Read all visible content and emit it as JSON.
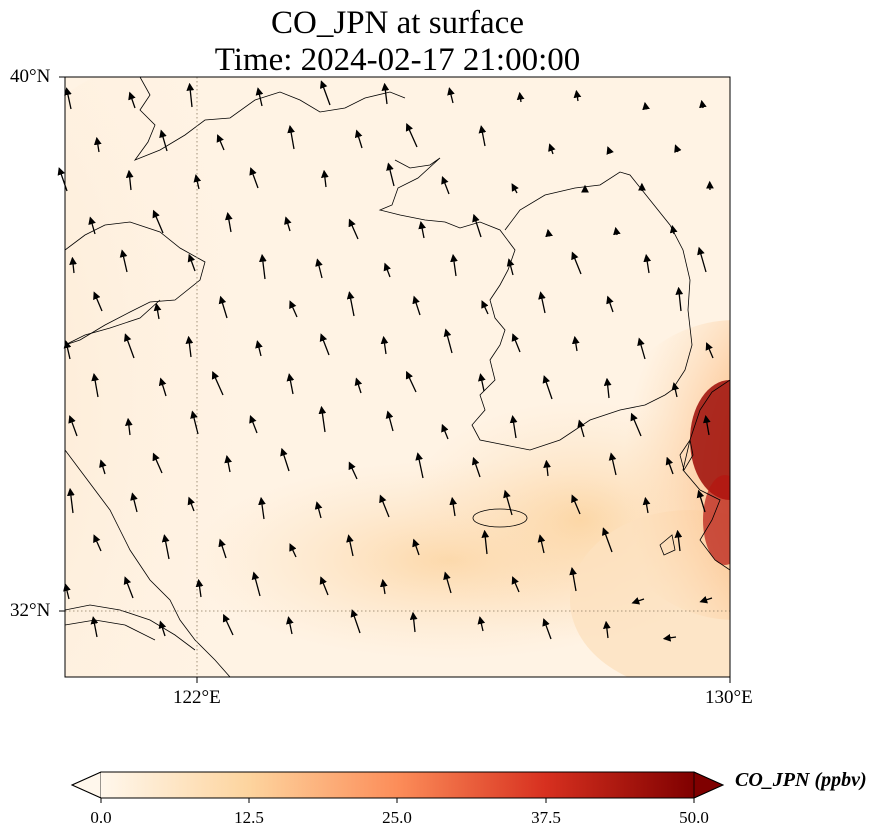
{
  "title": {
    "line1": "CO_JPN at surface",
    "line2": "Time: 2024-02-17 21:00:00"
  },
  "axes": {
    "lat_labels": [
      "40°N",
      "32°N"
    ],
    "lon_labels": [
      "122°E",
      "130°E"
    ],
    "lat_range": [
      31,
      40
    ],
    "lon_range": [
      120,
      130
    ]
  },
  "colorbar": {
    "label": "CO_JPN (ppbv)",
    "ticks": [
      "0.0",
      "12.5",
      "25.0",
      "37.5",
      "50.0"
    ],
    "range": [
      0,
      50
    ],
    "colormap": "OrRd",
    "extend": "both",
    "colors": [
      "#fff7ec",
      "#fdd49e",
      "#fc8d59",
      "#d7301f",
      "#7f0000"
    ]
  },
  "chart_data": {
    "type": "heatmap",
    "variable": "CO_JPN",
    "units": "ppbv",
    "level": "surface",
    "time": "2024-02-17 21:00:00",
    "gridlines": "dotted at 122°E and 32°N",
    "overlay": "wind vectors (mostly northwestward)"
  }
}
